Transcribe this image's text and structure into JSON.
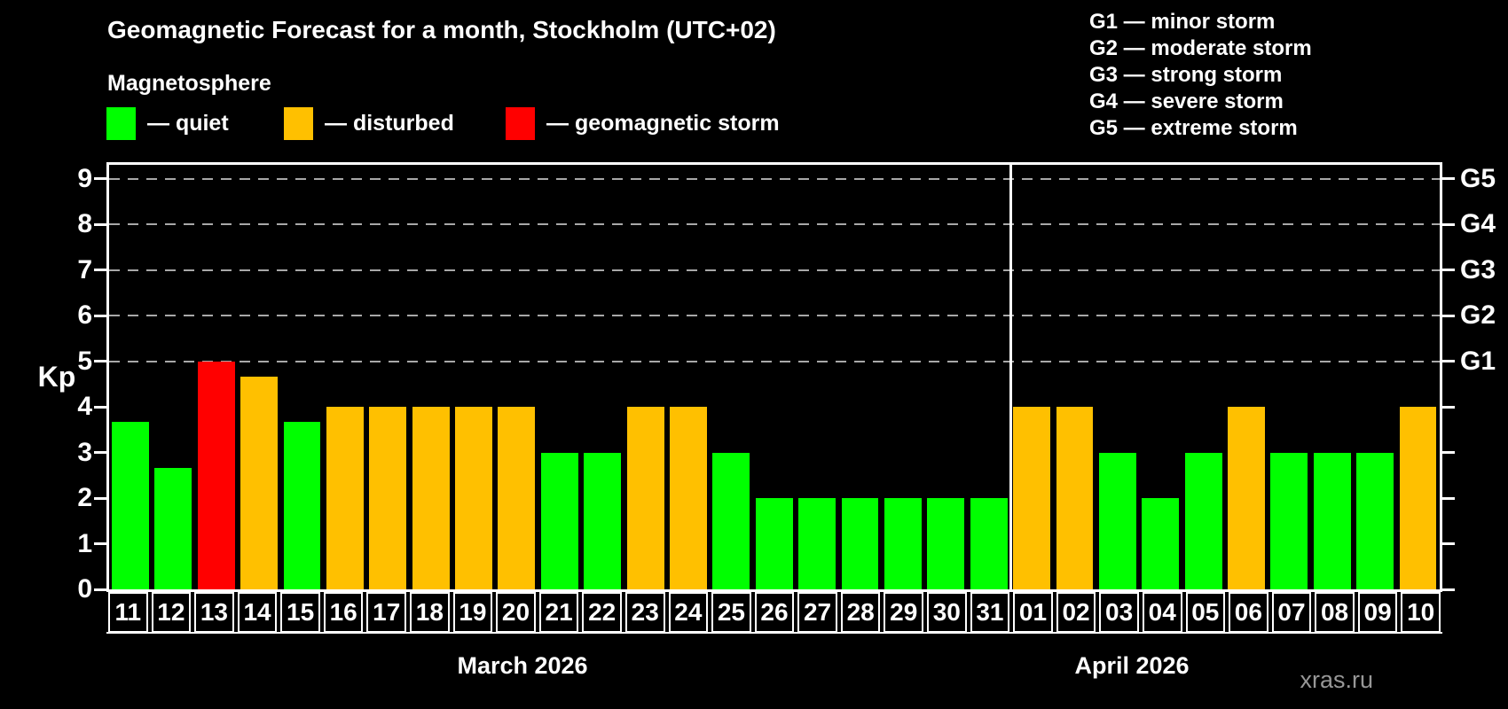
{
  "header": {
    "title": "Geomagnetic Forecast for a month, Stockholm (UTC+02)",
    "subtitle": "Magnetosphere"
  },
  "legend": {
    "items": [
      {
        "name": "quiet",
        "label": "— quiet",
        "color": "#00ff00"
      },
      {
        "name": "disturbed",
        "label": "— disturbed",
        "color": "#ffc000"
      },
      {
        "name": "geomagnetic-storm",
        "label": "— geomagnetic storm",
        "color": "#ff0000"
      }
    ]
  },
  "storm_scale_legend": {
    "lines": [
      "G1 — minor storm",
      "G2 — moderate storm",
      "G3 — strong storm",
      "G4 — severe storm",
      "G5 — extreme storm"
    ]
  },
  "watermark": "xras.ru",
  "chart_data": {
    "type": "bar",
    "title": "Geomagnetic Forecast for a month, Stockholm (UTC+02)",
    "ylabel": "Kp",
    "ylim": [
      0,
      9
    ],
    "yticks": [
      0,
      1,
      2,
      3,
      4,
      5,
      6,
      7,
      8,
      9
    ],
    "gridlines": {
      "values": [
        5,
        6,
        7,
        8,
        9
      ],
      "style": "dashed"
    },
    "right_axis_labels": [
      {
        "label": "G1",
        "value": 5
      },
      {
        "label": "G2",
        "value": 6
      },
      {
        "label": "G3",
        "value": 7
      },
      {
        "label": "G4",
        "value": 8
      },
      {
        "label": "G5",
        "value": 9
      }
    ],
    "color_key": {
      "quiet": "#00ff00",
      "disturbed": "#ffc000",
      "storm": "#ff0000"
    },
    "legend_position": "top",
    "months": [
      {
        "label": "March 2026",
        "label_center_x": 589,
        "days": [
          {
            "day": "11",
            "kp": 3.67,
            "state": "quiet"
          },
          {
            "day": "12",
            "kp": 2.67,
            "state": "quiet"
          },
          {
            "day": "13",
            "kp": 5.0,
            "state": "storm"
          },
          {
            "day": "14",
            "kp": 4.67,
            "state": "disturbed"
          },
          {
            "day": "15",
            "kp": 3.67,
            "state": "quiet"
          },
          {
            "day": "16",
            "kp": 4.0,
            "state": "disturbed"
          },
          {
            "day": "17",
            "kp": 4.0,
            "state": "disturbed"
          },
          {
            "day": "18",
            "kp": 4.0,
            "state": "disturbed"
          },
          {
            "day": "19",
            "kp": 4.0,
            "state": "disturbed"
          },
          {
            "day": "20",
            "kp": 4.0,
            "state": "disturbed"
          },
          {
            "day": "21",
            "kp": 3.0,
            "state": "quiet"
          },
          {
            "day": "22",
            "kp": 3.0,
            "state": "quiet"
          },
          {
            "day": "23",
            "kp": 4.0,
            "state": "disturbed"
          },
          {
            "day": "24",
            "kp": 4.0,
            "state": "disturbed"
          },
          {
            "day": "25",
            "kp": 3.0,
            "state": "quiet"
          },
          {
            "day": "26",
            "kp": 2.0,
            "state": "quiet"
          },
          {
            "day": "27",
            "kp": 2.0,
            "state": "quiet"
          },
          {
            "day": "28",
            "kp": 2.0,
            "state": "quiet"
          },
          {
            "day": "29",
            "kp": 2.0,
            "state": "quiet"
          },
          {
            "day": "30",
            "kp": 2.0,
            "state": "quiet"
          },
          {
            "day": "31",
            "kp": 2.0,
            "state": "quiet"
          }
        ]
      },
      {
        "label": "April 2026",
        "label_center_x": 1276,
        "days": [
          {
            "day": "01",
            "kp": 4.0,
            "state": "disturbed"
          },
          {
            "day": "02",
            "kp": 4.0,
            "state": "disturbed"
          },
          {
            "day": "03",
            "kp": 3.0,
            "state": "quiet"
          },
          {
            "day": "04",
            "kp": 2.0,
            "state": "quiet"
          },
          {
            "day": "05",
            "kp": 3.0,
            "state": "quiet"
          },
          {
            "day": "06",
            "kp": 4.0,
            "state": "disturbed"
          },
          {
            "day": "07",
            "kp": 3.0,
            "state": "quiet"
          },
          {
            "day": "08",
            "kp": 3.0,
            "state": "quiet"
          },
          {
            "day": "09",
            "kp": 3.0,
            "state": "quiet"
          },
          {
            "day": "10",
            "kp": 4.0,
            "state": "disturbed"
          }
        ]
      }
    ]
  }
}
